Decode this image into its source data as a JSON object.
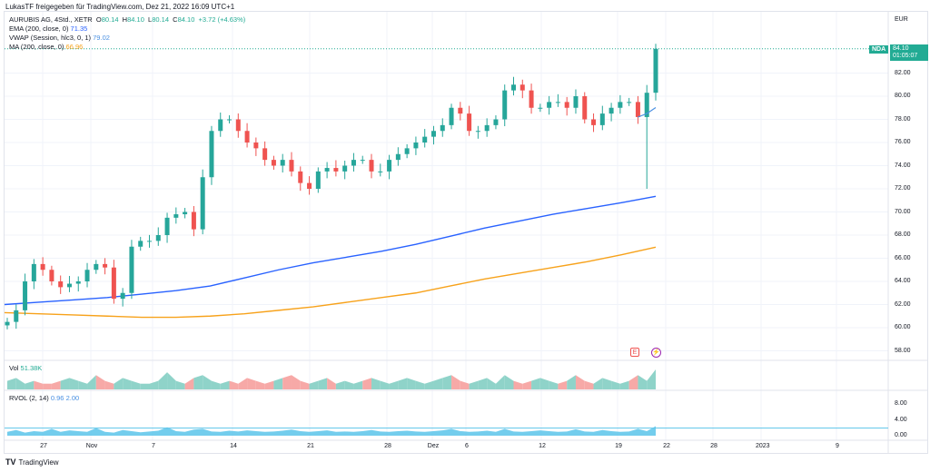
{
  "header": {
    "shared_by": "LukasTF freigegeben für TradingView.com, Dez 21, 2022 16:09 UTC+1"
  },
  "legend": {
    "symbol": "AURUBIS AG, 4Std., XETR",
    "o_label": "O",
    "o": "80.14",
    "h_label": "H",
    "h": "84.10",
    "l_label": "L",
    "l": "80.14",
    "c_label": "C",
    "c": "84.10",
    "change": "+3.72 (+4.63%)",
    "ema_label": "EMA (200, close, 0)",
    "ema": "71.35",
    "vwap_label": "VWAP (Session, hlc3, 0, 1)",
    "vwap": "79.02",
    "ma_label": "MA (200, close, 0)",
    "ma": "66.96",
    "vol_label": "Vol",
    "vol": "51.38K",
    "rvol_label": "RVOL (2, 14)",
    "rvol1": "0.96",
    "rvol2": "2.00"
  },
  "price_axis": {
    "currency": "EUR",
    "ticks": [
      "82.00",
      "80.00",
      "78.00",
      "76.00",
      "74.00",
      "72.00",
      "70.00",
      "68.00",
      "66.00",
      "64.00",
      "62.00",
      "60.00",
      "58.00"
    ],
    "last_price": "84.10",
    "countdown": "01:05:07",
    "nda_label": "NDA"
  },
  "rvol_axis": {
    "ticks": [
      "8.00",
      "4.00",
      "0.00"
    ]
  },
  "time_axis": {
    "ticks": [
      "27",
      "Nov",
      "7",
      "14",
      "21",
      "28",
      "Dez",
      "6",
      "12",
      "19",
      "22",
      "28",
      "2023",
      "9"
    ]
  },
  "events": {
    "earnings": "E",
    "dividend": "⚡"
  },
  "brand": {
    "name": "TradingView"
  },
  "colors": {
    "up": "#26a69a",
    "down": "#ef5350",
    "ema": "#2962ff",
    "ma": "#f7a21b",
    "vwap": "#4a90e2",
    "rvol": "#5bc4ea"
  },
  "chart_data": {
    "type": "candlestick",
    "closes": [
      60.5,
      61.5,
      64,
      65.5,
      65,
      64,
      63.5,
      63.8,
      64,
      65,
      65.5,
      65.2,
      62.5,
      63,
      67,
      67.5,
      67.5,
      68,
      69.5,
      69.8,
      70,
      68.5,
      73,
      77,
      78,
      78,
      77,
      76,
      75.5,
      74.5,
      74,
      74.5,
      73.5,
      72.5,
      72,
      73.5,
      73.8,
      73.5,
      74,
      74.5,
      74.5,
      73.5,
      73.5,
      74.5,
      75,
      75.5,
      76,
      76.5,
      77,
      77.5,
      79,
      78.5,
      77,
      77,
      77.5,
      78,
      80.5,
      81,
      80.5,
      79,
      79,
      79.5,
      79.5,
      79,
      80,
      78,
      77.5,
      78.5,
      79,
      79.5,
      79.5,
      78.2,
      80.3,
      84.1
    ],
    "ema": [
      62.0,
      62.2,
      62.4,
      62.6,
      62.9,
      63.2,
      63.6,
      64.3,
      65.0,
      65.6,
      66.1,
      66.6,
      67.2,
      67.9,
      68.6,
      69.2,
      69.8,
      70.3,
      70.8,
      71.35
    ],
    "ma": [
      61.3,
      61.2,
      61.1,
      61.0,
      60.9,
      60.9,
      61.0,
      61.2,
      61.5,
      61.8,
      62.2,
      62.6,
      63.0,
      63.6,
      64.2,
      64.7,
      65.2,
      65.7,
      66.3,
      66.96
    ],
    "volume": [
      3,
      4,
      2,
      3,
      2,
      2,
      3,
      4,
      3,
      2,
      5,
      3,
      2,
      4,
      3,
      2,
      2,
      3,
      6,
      3,
      2,
      4,
      5,
      3,
      2,
      3,
      2,
      4,
      3,
      2,
      3,
      4,
      5,
      3,
      2,
      3,
      4,
      2,
      3,
      2,
      3,
      4,
      3,
      2,
      3,
      4,
      3,
      2,
      3,
      4,
      5,
      3,
      2,
      3,
      4,
      2,
      5,
      3,
      2,
      3,
      4,
      3,
      2,
      3,
      5,
      3,
      2,
      4,
      3,
      2,
      3,
      5,
      3,
      7
    ],
    "rvol": [
      1,
      1.5,
      0.8,
      1.2,
      1,
      1.8,
      1,
      1.4,
      1.2,
      1,
      2,
      1,
      0.8,
      1.5,
      1.2,
      0.9,
      1.1,
      1.3,
      2.2,
      1.2,
      1,
      1.6,
      1.8,
      1.1,
      1,
      1.3,
      1.1,
      1.4,
      1.2,
      1,
      1.1,
      1.3,
      1.6,
      1.2,
      1,
      1.2,
      1.4,
      1,
      1.1,
      1,
      1.2,
      1.5,
      1.1,
      1,
      1.2,
      1.3,
      1.1,
      1,
      1.2,
      1.4,
      1.8,
      1.2,
      1,
      1.1,
      1.3,
      1,
      1.8,
      1.1,
      1,
      1.2,
      1.4,
      1.2,
      1,
      1.1,
      1.7,
      1.1,
      1,
      1.5,
      1.2,
      1,
      1.1,
      1.8,
      1.2,
      2.5
    ],
    "ylim": [
      57,
      85.5
    ]
  }
}
